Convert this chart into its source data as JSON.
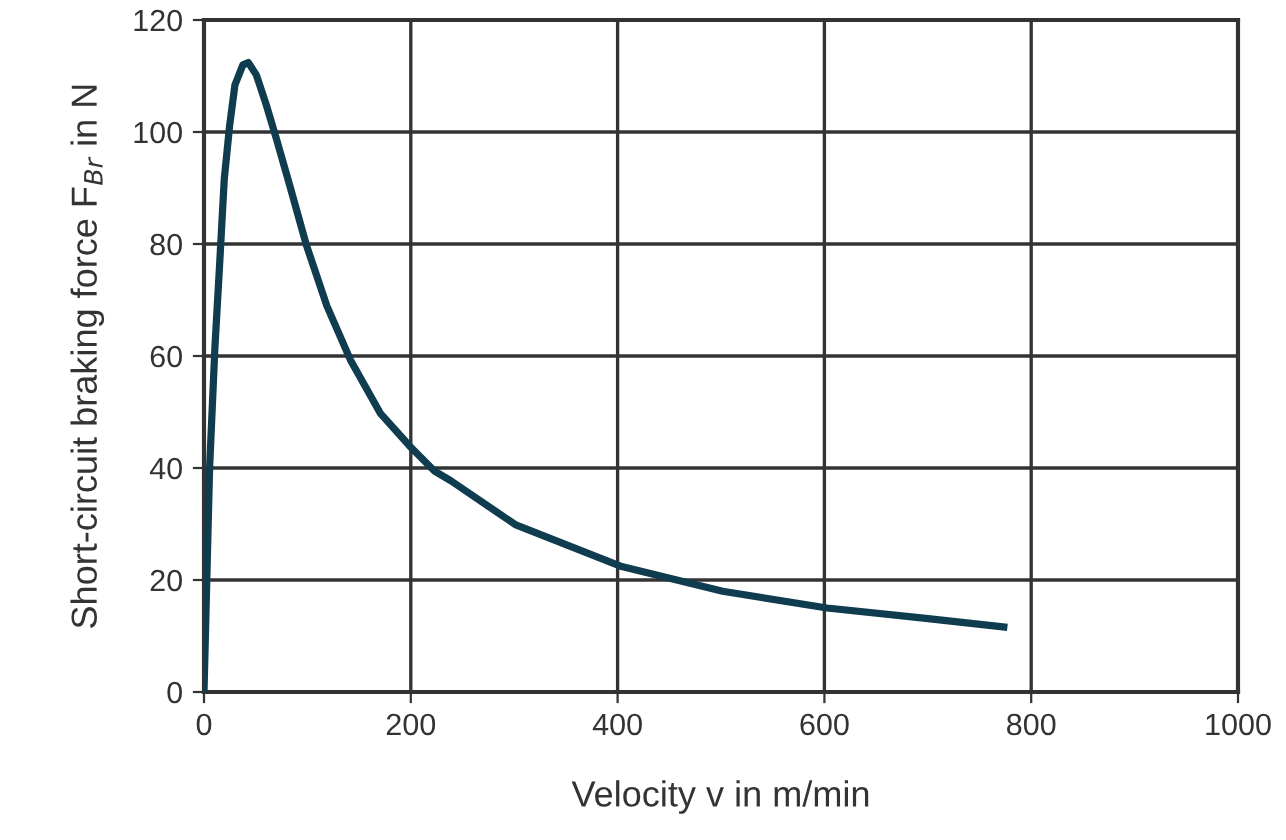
{
  "chart_data": {
    "type": "line",
    "xlabel": "Velocity v in m/min",
    "ylabel": "Short-circuit braking force F$_{Br}$ in N",
    "xlim": [
      0,
      1000
    ],
    "ylim": [
      0,
      120
    ],
    "xticks": [
      0,
      200,
      400,
      600,
      800,
      1000
    ],
    "yticks": [
      0,
      20,
      40,
      60,
      80,
      100,
      120
    ],
    "grid": true,
    "marker": "none",
    "line_style": "solid",
    "series": [
      {
        "color": "#0f3d4f",
        "x": [
          0,
          5.4,
          10.6,
          15,
          19.6,
          24.7,
          29.9,
          37.6,
          42.8,
          50.6,
          60.3,
          70,
          83,
          99.2,
          118.9,
          141.6,
          170.8,
          200,
          222.6,
          238.9,
          301,
          404,
          501.6,
          602.5,
          695.9,
          773.5
        ],
        "values": [
          0,
          40,
          61.7,
          76,
          91.6,
          101,
          108.4,
          112,
          112.4,
          110.2,
          104.8,
          98.8,
          90.4,
          79.7,
          68.9,
          59.3,
          49.7,
          43.7,
          39.5,
          37.7,
          29.9,
          22.4,
          18,
          15,
          13.2,
          11.6
        ]
      }
    ]
  }
}
